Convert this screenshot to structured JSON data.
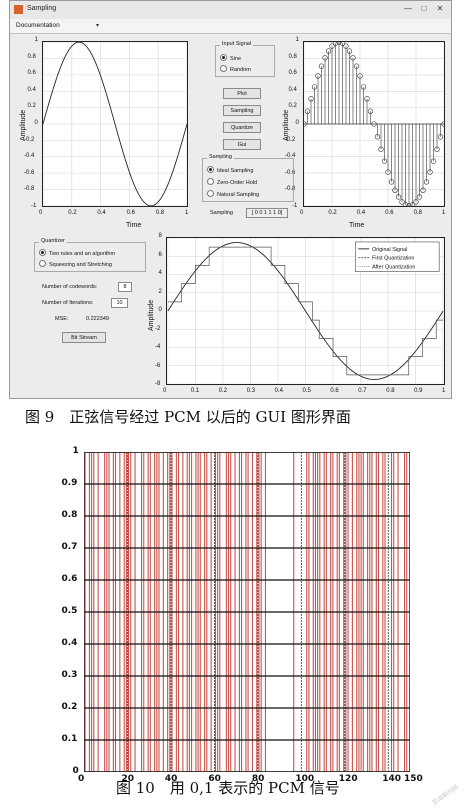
{
  "window": {
    "title": "Sampling",
    "menu": "Documentation",
    "controls": [
      "—",
      "□",
      "✕"
    ]
  },
  "input_signal": {
    "title": "Input Signal",
    "options": [
      {
        "label": "Sine",
        "selected": true
      },
      {
        "label": "Random",
        "selected": false
      }
    ]
  },
  "buttons": {
    "plot": "Plot",
    "sampling": "Sampling",
    "quantize": "Quantize",
    "gui": "Gui",
    "bit_stream": "Bit Stream"
  },
  "sampling_group": {
    "title": "Sampling",
    "options": [
      {
        "label": "Ideal Sampling",
        "selected": true
      },
      {
        "label": "Zero-Order Hold",
        "selected": false
      },
      {
        "label": "Natural Sampling",
        "selected": false
      }
    ],
    "code_label": "Sampling",
    "code_value": "[ 0 0 1 1 1 0]"
  },
  "quantizer": {
    "title": "Quantizer",
    "options": [
      {
        "label": "Two rules and an algorithm",
        "selected": true
      },
      {
        "label": "Squeezing and Stretching",
        "selected": false
      }
    ],
    "codewords_label": "Number of codewords:",
    "codewords_value": "8",
    "iterations_label": "Number of Iterations:",
    "iterations_value": "10",
    "mse_label": "MSE:",
    "mse_value": "0.222349"
  },
  "legend": [
    "Original Signal",
    "First Quantization",
    "After Quantization"
  ],
  "caption1": "图 9　正弦信号经过 PCM 以后的 GUI 图形界面",
  "caption2": "图 10　用 0,1 表示的 PCM 信号",
  "watermark": "至海期刊网",
  "chart_data": [
    {
      "type": "line",
      "title": "",
      "xlabel": "Time",
      "ylabel": "Amplitude",
      "xlim": [
        0,
        1
      ],
      "ylim": [
        -1,
        1
      ],
      "xticks": [
        0,
        0.2,
        0.4,
        0.6,
        0.8,
        1
      ],
      "yticks": [
        -1,
        -0.8,
        -0.6,
        -0.4,
        -0.2,
        0,
        0.2,
        0.4,
        0.6,
        0.8,
        1
      ],
      "series": [
        {
          "function": "sin(2*pi*t)",
          "x_start": 0,
          "x_end": 1
        }
      ],
      "grid": true
    },
    {
      "type": "scatter",
      "title": "",
      "xlabel": "Time",
      "ylabel": "Amplitude",
      "xlim": [
        0,
        1
      ],
      "ylim": [
        -1,
        1
      ],
      "xticks": [
        0,
        0.2,
        0.4,
        0.6,
        0.8,
        1
      ],
      "yticks": [
        -1,
        -0.8,
        -0.6,
        -0.4,
        -0.2,
        0,
        0.2,
        0.4,
        0.6,
        0.8,
        1
      ],
      "series": [
        {
          "function": "sin(2*pi*t)",
          "samples": 40,
          "x_start": 0,
          "x_end": 1,
          "style": "stem"
        }
      ],
      "grid": true
    },
    {
      "type": "line",
      "title": "",
      "xlabel": "",
      "ylabel": "Amplitude",
      "xlim": [
        0,
        1
      ],
      "ylim": [
        -8,
        8
      ],
      "xticks": [
        0,
        0.1,
        0.2,
        0.3,
        0.4,
        0.5,
        0.6,
        0.7,
        0.8,
        0.9,
        1
      ],
      "yticks": [
        -8,
        -6,
        -4,
        -2,
        0,
        2,
        4,
        6,
        8
      ],
      "series": [
        {
          "name": "Original Signal",
          "function": "7.5*sin(2*pi*t)"
        },
        {
          "name": "First Quantization",
          "function": "quantized 7.5*sin(2*pi*t)",
          "levels": 8
        },
        {
          "name": "After Quantization",
          "function": "quantized 7.5*sin(2*pi*t)",
          "levels": 8
        }
      ],
      "legend": "top-right",
      "grid": true
    },
    {
      "type": "bar",
      "title": "",
      "xlabel": "",
      "ylabel": "",
      "xlim": [
        0,
        150
      ],
      "ylim": [
        0,
        1
      ],
      "xticks": [
        0,
        20,
        40,
        60,
        80,
        100,
        120,
        140,
        150
      ],
      "yticks": [
        0,
        0.1,
        0.2,
        0.3,
        0.4,
        0.5,
        0.6,
        0.7,
        0.8,
        0.9,
        1
      ],
      "bits": [
        1,
        0,
        1,
        1,
        1,
        0,
        1,
        0,
        0,
        1,
        1,
        1,
        0,
        1,
        1,
        0,
        1,
        0,
        1,
        1,
        1,
        1,
        0,
        1,
        0,
        0,
        1,
        1,
        0,
        1,
        1,
        0,
        1,
        1,
        1,
        0,
        1,
        0,
        1,
        1,
        1,
        0,
        1,
        1,
        0,
        1,
        0,
        1,
        1,
        1,
        0,
        1,
        1,
        1,
        0,
        1,
        1,
        0,
        1,
        0,
        1,
        1,
        1,
        0,
        0,
        1,
        1,
        1,
        0,
        1,
        0,
        1,
        1,
        0,
        1,
        1,
        0,
        1,
        0,
        1,
        1,
        1,
        0,
        1,
        0,
        0,
        0,
        0,
        0,
        0,
        0,
        0,
        0,
        0,
        0,
        0,
        1,
        0,
        0,
        0,
        0,
        0,
        1,
        1,
        0,
        1,
        1,
        1,
        1,
        0,
        1,
        1,
        0,
        1,
        1,
        0,
        1,
        1,
        0,
        1,
        1,
        1,
        0,
        1,
        0,
        1,
        1,
        1,
        1,
        0,
        1,
        1,
        1,
        0,
        1,
        1,
        0,
        1,
        1,
        0,
        0,
        1,
        1,
        0,
        1,
        0,
        0,
        1,
        1,
        0,
        1
      ],
      "grid": true
    }
  ]
}
